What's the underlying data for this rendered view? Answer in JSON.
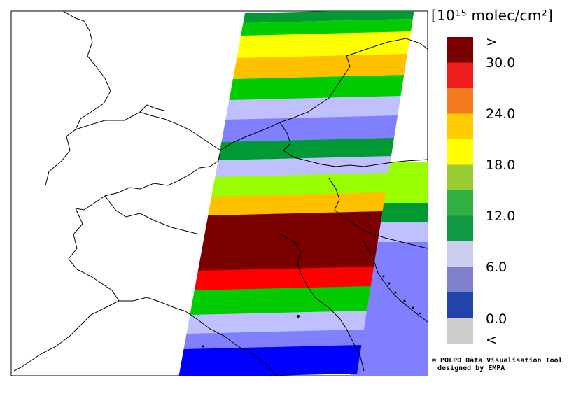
{
  "legend": {
    "unit": "[10¹⁵ molec/cm²]",
    "swatch_colors": [
      "#7b0000",
      "#ee1c1c",
      "#f47a1f",
      "#ffcc00",
      "#ffff00",
      "#99cc33",
      "#33b044",
      "#119944",
      "#ccccee",
      "#7f7fcc",
      "#2244aa",
      "#cccccc"
    ],
    "tick_labels": [
      ">",
      "30.0",
      "24.0",
      "18.0",
      "12.0",
      "6.0",
      "0.0",
      "<"
    ]
  },
  "credit": {
    "line1": "© POLPO Data Visualisation Tool",
    "line2": "designed by EMPA"
  },
  "swath_colors": {
    "darkred": "#7a0000",
    "red": "#ff0000",
    "orange": "#ffc000",
    "yellow": "#ffff00",
    "lime": "#99ff00",
    "green": "#00cc00",
    "darkgreen": "#009933",
    "lightviolet": "#c0c0ff",
    "violet": "#8080ff",
    "blue": "#0000ff"
  }
}
